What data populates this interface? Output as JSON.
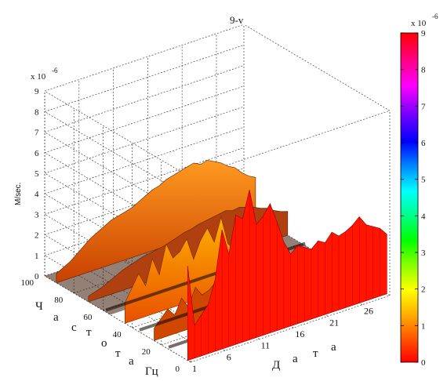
{
  "chart_data": {
    "type": "surface3d",
    "title": "9-v",
    "zlabel": "M/sec.",
    "z_exponent_label": "x 10",
    "z_exponent_power": "-6",
    "zlim": [
      0,
      9
    ],
    "z_ticks": [
      "0",
      "1",
      "2",
      "3",
      "4",
      "5",
      "6",
      "7",
      "8",
      "9"
    ],
    "y_axis_label_letters": [
      "Ч",
      "а",
      "с",
      "т",
      "о",
      "т",
      "а",
      "Гц"
    ],
    "y_ticks": [
      "0",
      "20",
      "40",
      "60",
      "80",
      "100"
    ],
    "x_axis_label_letters": [
      "Д",
      "а",
      "т",
      "а"
    ],
    "x_ticks": [
      "1",
      "6",
      "11",
      "16",
      "21",
      "26"
    ],
    "colorbar": {
      "exponent_label": "x 10",
      "exponent_power": "-6",
      "ticks": [
        "0",
        "1",
        "2",
        "3",
        "4",
        "5",
        "6",
        "7",
        "8",
        "9"
      ],
      "colormap": [
        "#ff0000",
        "#ff6000",
        "#ffc000",
        "#ffff00",
        "#80ff00",
        "#00ff00",
        "#00ff80",
        "#00ffff",
        "#0080ff",
        "#0000ff",
        "#8000ff",
        "#ff00ff",
        "#ff0080",
        "#ff0000"
      ]
    },
    "front_profile_z": [
      4.6,
      1.6,
      2.0,
      2.4,
      3.5,
      5.8,
      4.5,
      6.3,
      6.0,
      7.3,
      5.5,
      5.8,
      6.3,
      5.3,
      4.2,
      3.5,
      3.8,
      3.6,
      3.4,
      3.7,
      3.5,
      3.9,
      3.6,
      3.7,
      3.9,
      4.2,
      3.7,
      3.5,
      3.3,
      2.9
    ],
    "mid_profile_z": [
      1.0,
      1.6,
      2.2,
      1.5,
      2.7,
      1.8,
      3.2,
      2.4,
      2.6,
      3.1,
      2.0,
      2.8,
      3.3,
      2.5,
      3.6,
      2.2,
      1.8,
      1.4,
      1.1,
      0.9,
      0.8,
      0.7,
      0.6,
      0.5,
      0.5,
      0.4,
      0.4,
      0.3,
      0.3,
      0.3
    ],
    "back_profile_z": [
      0.5,
      0.7,
      0.9,
      1.2,
      1.5,
      1.8,
      2.0,
      2.2,
      2.4,
      2.5,
      2.6,
      2.7,
      2.9,
      3.1,
      3.3,
      3.4,
      3.6,
      3.7,
      3.8,
      3.9,
      4.0,
      3.8,
      3.9,
      3.7,
      3.5,
      3.2,
      3.0,
      2.6,
      2.3,
      2.1
    ]
  }
}
